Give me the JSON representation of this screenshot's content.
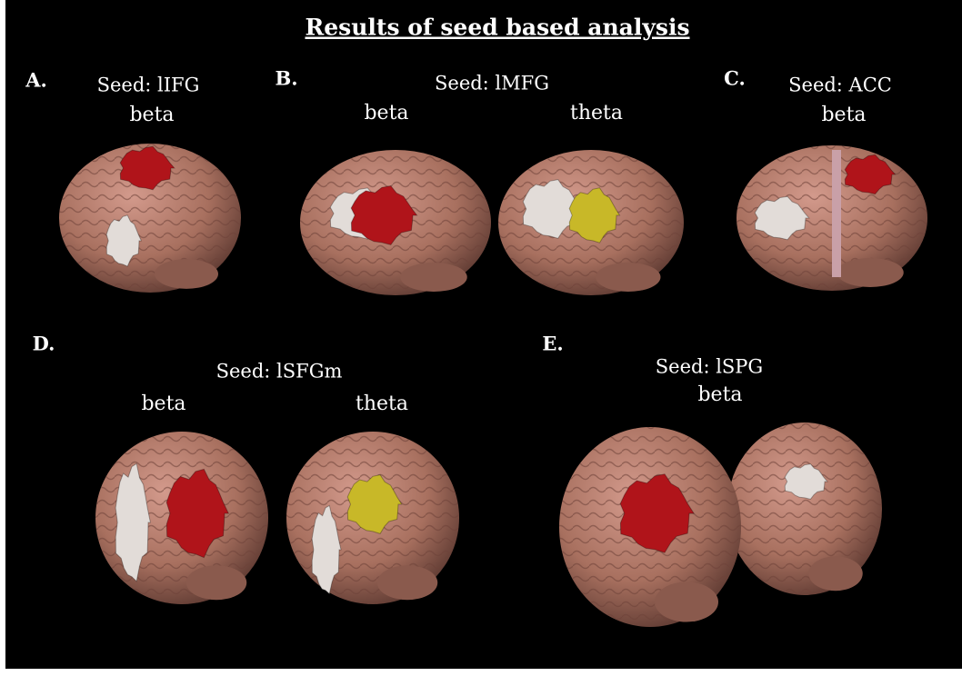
{
  "title": "Results of seed based analysis",
  "panels": [
    {
      "label": "A.",
      "seed": "Seed: lIFG",
      "maps": [
        {
          "band": "beta"
        }
      ]
    },
    {
      "label": "B.",
      "seed": "Seed: lMFG",
      "maps": [
        {
          "band": "beta"
        },
        {
          "band": "theta"
        }
      ]
    },
    {
      "label": "C.",
      "seed": "Seed: ACC",
      "maps": [
        {
          "band": "beta"
        }
      ]
    },
    {
      "label": "D.",
      "seed": "Seed: lSFGm",
      "maps": [
        {
          "band": "beta"
        },
        {
          "band": "theta"
        }
      ]
    },
    {
      "label": "E.",
      "seed": "Seed: lSPG",
      "maps": [
        {
          "band": "beta"
        }
      ]
    }
  ]
}
